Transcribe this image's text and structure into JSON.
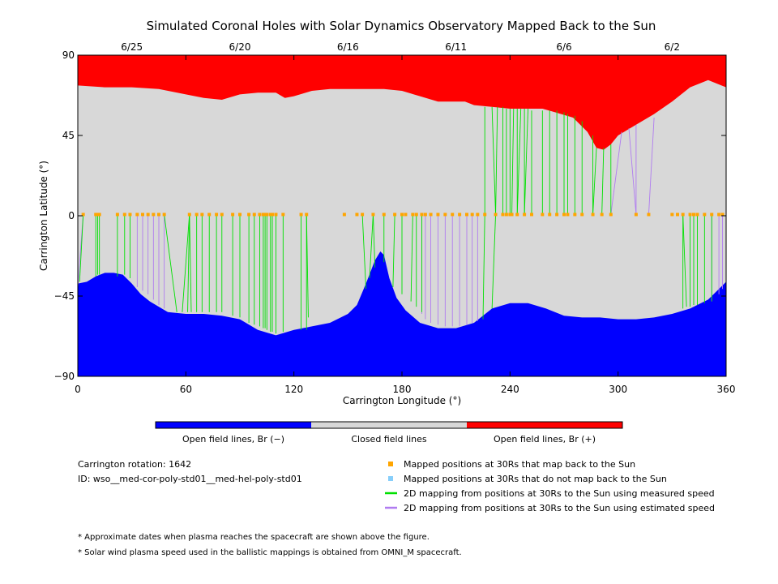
{
  "chart_data": {
    "type": "area",
    "title": "Simulated Coronal Holes with Solar Dynamics Observatory Mapped Back to the Sun",
    "xlabel": "Carrington Longitude (°)",
    "ylabel": "Carrington Latitude (°)",
    "xlim": [
      0,
      360
    ],
    "ylim": [
      -90,
      90
    ],
    "x_ticks": [
      0,
      60,
      120,
      180,
      240,
      300,
      360
    ],
    "y_ticks": [
      -90,
      -45,
      0,
      45,
      90
    ],
    "date_ticks": [
      {
        "label": "6/25",
        "lon": 30
      },
      {
        "label": "6/20",
        "lon": 90
      },
      {
        "label": "6/16",
        "lon": 150
      },
      {
        "label": "6/11",
        "lon": 210
      },
      {
        "label": "6/6",
        "lon": 270
      },
      {
        "label": "6/2",
        "lon": 330
      }
    ],
    "colors": {
      "open_negative": "#0000ff",
      "closed": "#d8d8d8",
      "open_positive": "#ff0000",
      "mapped": "#ffa500",
      "not_mapped": "#87cefa",
      "measured": "#00e000",
      "estimated": "#b07cf0"
    },
    "north_boundary": [
      [
        0,
        73
      ],
      [
        15,
        72
      ],
      [
        30,
        72
      ],
      [
        45,
        71
      ],
      [
        60,
        68
      ],
      [
        70,
        66
      ],
      [
        80,
        65
      ],
      [
        90,
        68
      ],
      [
        100,
        69
      ],
      [
        105,
        69
      ],
      [
        110,
        69
      ],
      [
        115,
        66
      ],
      [
        120,
        67
      ],
      [
        130,
        70
      ],
      [
        140,
        71
      ],
      [
        150,
        71
      ],
      [
        160,
        71
      ],
      [
        170,
        71
      ],
      [
        180,
        70
      ],
      [
        190,
        67
      ],
      [
        200,
        64
      ],
      [
        210,
        64
      ],
      [
        215,
        64
      ],
      [
        220,
        62
      ],
      [
        230,
        61
      ],
      [
        240,
        60
      ],
      [
        250,
        60
      ],
      [
        258,
        60
      ],
      [
        265,
        58
      ],
      [
        275,
        55
      ],
      [
        283,
        47
      ],
      [
        288,
        38
      ],
      [
        292,
        37
      ],
      [
        296,
        40
      ],
      [
        300,
        45
      ],
      [
        310,
        51
      ],
      [
        320,
        57
      ],
      [
        330,
        64
      ],
      [
        340,
        72
      ],
      [
        350,
        76
      ],
      [
        360,
        72
      ]
    ],
    "south_boundary": [
      [
        0,
        -38
      ],
      [
        5,
        -37
      ],
      [
        10,
        -34
      ],
      [
        15,
        -32
      ],
      [
        20,
        -32
      ],
      [
        25,
        -33
      ],
      [
        30,
        -38
      ],
      [
        35,
        -44
      ],
      [
        40,
        -48
      ],
      [
        50,
        -54
      ],
      [
        60,
        -55
      ],
      [
        70,
        -55
      ],
      [
        80,
        -56
      ],
      [
        90,
        -58
      ],
      [
        100,
        -64
      ],
      [
        110,
        -67
      ],
      [
        120,
        -64
      ],
      [
        130,
        -62
      ],
      [
        140,
        -60
      ],
      [
        150,
        -55
      ],
      [
        155,
        -50
      ],
      [
        160,
        -38
      ],
      [
        165,
        -25
      ],
      [
        168,
        -20
      ],
      [
        170,
        -22
      ],
      [
        173,
        -35
      ],
      [
        177,
        -46
      ],
      [
        182,
        -53
      ],
      [
        190,
        -60
      ],
      [
        200,
        -63
      ],
      [
        210,
        -63
      ],
      [
        220,
        -60
      ],
      [
        230,
        -52
      ],
      [
        240,
        -49
      ],
      [
        250,
        -49
      ],
      [
        260,
        -52
      ],
      [
        270,
        -56
      ],
      [
        280,
        -57
      ],
      [
        290,
        -57
      ],
      [
        300,
        -58
      ],
      [
        310,
        -58
      ],
      [
        320,
        -57
      ],
      [
        330,
        -55
      ],
      [
        340,
        -52
      ],
      [
        350,
        -47
      ],
      [
        360,
        -37
      ]
    ],
    "mapped_points": [
      3,
      10,
      11,
      12,
      22,
      26,
      29,
      33,
      36,
      39,
      42,
      45,
      48,
      62,
      66,
      69,
      73,
      77,
      80,
      86,
      90,
      95,
      98,
      101,
      103,
      104,
      105,
      107,
      108,
      110,
      114,
      124,
      127,
      148,
      155,
      158,
      164,
      170,
      176,
      180,
      182,
      186,
      188,
      191,
      193,
      196,
      200,
      204,
      208,
      212,
      216,
      219,
      222,
      226,
      232,
      236,
      238,
      240,
      241,
      244,
      248,
      252,
      258,
      262,
      266,
      270,
      272,
      276,
      280,
      286,
      291,
      296,
      310,
      317,
      330,
      333,
      336,
      340,
      342,
      344,
      348,
      352,
      356,
      358
    ],
    "mapped_lat": 0.7,
    "measured_links": [
      [
        1,
        -37
      ],
      [
        10,
        -34
      ],
      [
        11,
        -33
      ],
      [
        12,
        -33
      ],
      [
        22,
        -34
      ],
      [
        26,
        -33
      ],
      [
        29,
        -35
      ],
      [
        55,
        -54
      ],
      [
        58,
        -54
      ],
      [
        61,
        -54
      ],
      [
        63,
        -54
      ],
      [
        66,
        -54
      ],
      [
        69,
        -54
      ],
      [
        73,
        -54
      ],
      [
        77,
        -54
      ],
      [
        80,
        -54
      ],
      [
        86,
        -56
      ],
      [
        90,
        -57
      ],
      [
        95,
        -60
      ],
      [
        98,
        -61
      ],
      [
        101,
        -62
      ],
      [
        103,
        -63
      ],
      [
        104,
        -63
      ],
      [
        105,
        -64
      ],
      [
        107,
        -65
      ],
      [
        108,
        -65
      ],
      [
        110,
        -66
      ],
      [
        114,
        -65
      ],
      [
        124,
        -64
      ],
      [
        127,
        -64
      ],
      [
        128,
        -57
      ],
      [
        160,
        -41
      ],
      [
        162,
        -35
      ],
      [
        165,
        -29
      ],
      [
        170,
        -26
      ],
      [
        175,
        -40
      ],
      [
        180,
        -44
      ],
      [
        185,
        -48
      ],
      [
        188,
        -51
      ],
      [
        191,
        -54
      ],
      [
        225,
        -58
      ],
      [
        230,
        -52
      ],
      [
        226,
        61
      ],
      [
        230,
        61
      ],
      [
        233,
        61
      ],
      [
        236,
        61
      ],
      [
        238,
        60
      ],
      [
        240,
        60
      ],
      [
        242,
        60
      ],
      [
        244,
        60
      ],
      [
        246,
        60
      ],
      [
        248,
        60
      ],
      [
        250,
        60
      ],
      [
        252,
        59
      ],
      [
        258,
        59
      ],
      [
        262,
        59
      ],
      [
        266,
        59
      ],
      [
        270,
        58
      ],
      [
        272,
        57
      ],
      [
        276,
        56
      ],
      [
        280,
        53
      ],
      [
        286,
        45
      ],
      [
        288,
        38
      ],
      [
        292,
        38
      ],
      [
        296,
        40
      ],
      [
        336,
        -52
      ],
      [
        338,
        -51
      ],
      [
        340,
        -51
      ],
      [
        342,
        -50
      ],
      [
        344,
        -50
      ],
      [
        348,
        -49
      ],
      [
        352,
        -48
      ]
    ],
    "estimated_links": [
      [
        0,
        -40
      ],
      [
        33,
        -40
      ],
      [
        36,
        -42
      ],
      [
        39,
        -44
      ],
      [
        42,
        -47
      ],
      [
        45,
        -50
      ],
      [
        48,
        -52
      ],
      [
        191,
        -55
      ],
      [
        193,
        -58
      ],
      [
        196,
        -60
      ],
      [
        200,
        -61
      ],
      [
        204,
        -62
      ],
      [
        208,
        -62
      ],
      [
        212,
        -62
      ],
      [
        216,
        -61
      ],
      [
        219,
        -60
      ],
      [
        222,
        -59
      ],
      [
        302,
        47
      ],
      [
        306,
        49
      ],
      [
        310,
        51
      ],
      [
        320,
        55
      ],
      [
        352,
        -48
      ],
      [
        356,
        -44
      ],
      [
        358,
        -41
      ]
    ]
  },
  "colorbar": {
    "labels": [
      "Open field lines, Br (−)",
      "Closed field lines",
      "Open field lines, Br (+)"
    ]
  },
  "info": {
    "rotation": "Carrington rotation: 1642",
    "id": "ID: wso__med-cor-poly-std01__med-hel-poly-std01"
  },
  "legend": {
    "mapped": "Mapped positions at 30Rs that map back to the Sun",
    "not_mapped": "Mapped positions at 30Rs that do not map back to the Sun",
    "measured": "2D mapping from positions at 30Rs to the Sun using measured speed",
    "estimated": "2D mapping from positions at 30Rs to the Sun using estimated speed"
  },
  "notes": [
    "* Approximate dates when plasma reaches the spacecraft are shown above the figure.",
    "* Solar wind plasma speed used in the ballistic mappings is obtained from OMNI_M spacecraft."
  ]
}
